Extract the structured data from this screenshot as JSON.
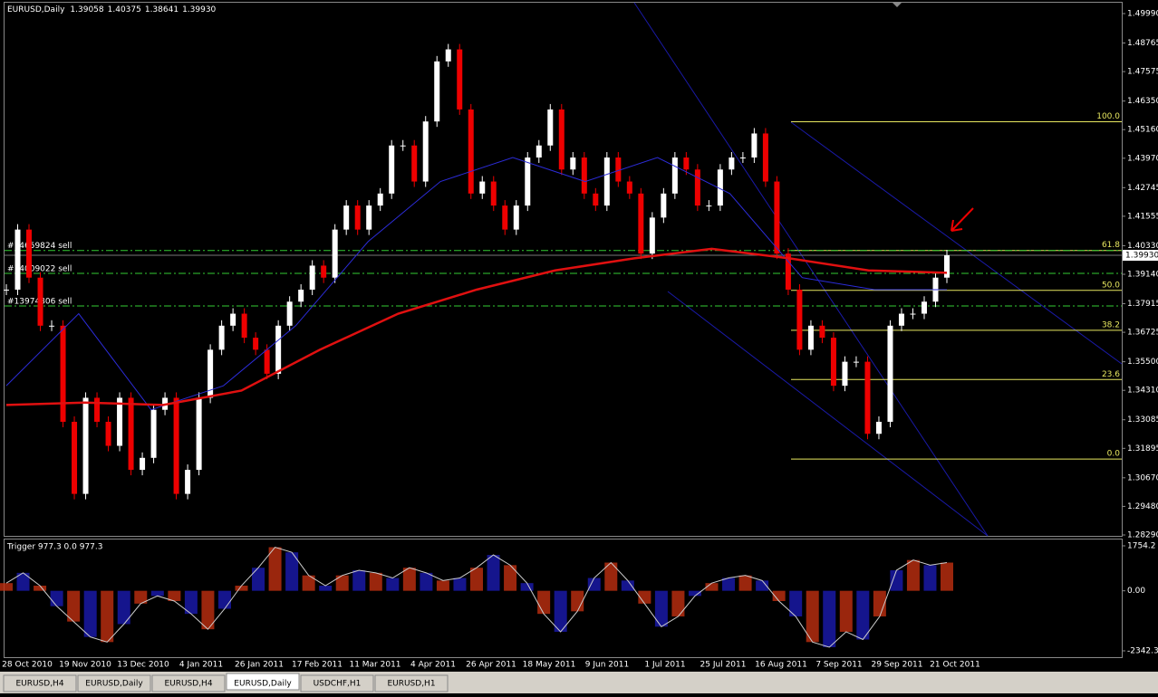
{
  "window": {
    "symbol": "EURUSD,Daily",
    "ohlc": [
      "1.39058",
      "1.40375",
      "1.38641",
      "1.39930"
    ],
    "price_axis": {
      "ylim": [
        1.2829,
        1.4999
      ],
      "yticks": [
        {
          "value": 1.4999,
          "label": "1.49990"
        },
        1.48765,
        1.47575,
        {
          "value": 1.4635,
          "label": "1.46350"
        },
        {
          "value": 1.4516,
          "label": "1.45160"
        },
        {
          "value": 1.4397,
          "label": "1.43970"
        },
        1.42745,
        1.41555,
        {
          "value": 1.4033,
          "label": "1.40330"
        },
        {
          "value": 1.3914,
          "label": "1.39140"
        },
        1.37915,
        1.36725,
        {
          "value": 1.355,
          "label": "1.35500"
        },
        {
          "value": 1.3431,
          "label": "1.34310"
        },
        1.33085,
        1.31895,
        {
          "value": 1.3067,
          "label": "1.30670"
        },
        {
          "value": 1.2948,
          "label": "1.29480"
        },
        {
          "value": 1.2829,
          "label": "1.28290"
        }
      ],
      "current": {
        "value": 1.3993,
        "label": "1.39930"
      }
    },
    "dates": [
      "28 Oct 2010",
      "19 Nov 2010",
      "13 Dec 2010",
      "4 Jan 2011",
      "26 Jan 2011",
      "17 Feb 2011",
      "11 Mar 2011",
      "4 Apr 2011",
      "26 Apr 2011",
      "18 May 2011",
      "9 Jun 2011",
      "1 Jul 2011",
      "25 Jul 2011",
      "16 Aug 2011",
      "7 Sep 2011",
      "29 Sep 2011",
      "21 Oct 2011"
    ],
    "closes": [
      1.385,
      1.41,
      1.39,
      1.37,
      1.37,
      1.33,
      1.3,
      1.34,
      1.33,
      1.32,
      1.34,
      1.31,
      1.315,
      1.335,
      1.34,
      1.3,
      1.31,
      1.34,
      1.36,
      1.37,
      1.375,
      1.365,
      1.36,
      1.35,
      1.37,
      1.38,
      1.385,
      1.395,
      1.39,
      1.41,
      1.42,
      1.41,
      1.42,
      1.425,
      1.445,
      1.445,
      1.43,
      1.455,
      1.48,
      1.485,
      1.46,
      1.425,
      1.43,
      1.42,
      1.41,
      1.42,
      1.44,
      1.445,
      1.46,
      1.435,
      1.44,
      1.425,
      1.42,
      1.44,
      1.43,
      1.425,
      1.4,
      1.415,
      1.425,
      1.44,
      1.435,
      1.42,
      1.42,
      1.435,
      1.44,
      1.44,
      1.45,
      1.43,
      1.4,
      1.385,
      1.36,
      1.37,
      1.365,
      1.345,
      1.355,
      1.355,
      1.325,
      1.33,
      1.37,
      1.375,
      1.375,
      1.38,
      1.39,
      1.3993
    ],
    "ma_red": [
      1.337,
      1.338,
      1.337,
      1.343,
      1.36,
      1.375,
      1.385,
      1.393,
      1.398,
      1.402,
      1.398,
      1.393,
      1.392
    ],
    "ma_blue": [
      1.345,
      1.375,
      1.335,
      1.345,
      1.37,
      1.405,
      1.43,
      1.44,
      1.43,
      1.44,
      1.425,
      1.39,
      1.385,
      1.385
    ],
    "orders": [
      {
        "label": "#14659824 sell",
        "price": 1.4013
      },
      {
        "label": "#14009022 sell",
        "price": 1.3918
      },
      {
        "label": "#13974806 sell",
        "price": 1.3782
      }
    ],
    "fib": [
      {
        "level": {
          "value": 100,
          "label": "100.0"
        },
        "price": 1.4549
      },
      {
        "level": 61.8,
        "price": 1.4013
      },
      {
        "level": {
          "value": 50,
          "label": "50.0"
        },
        "price": 1.3847
      },
      {
        "level": 38.2,
        "price": 1.3681
      },
      {
        "level": 23.6,
        "price": 1.3476
      },
      {
        "level": {
          "value": 0,
          "label": "0.0"
        },
        "price": 1.3145
      }
    ],
    "indicator": {
      "title": "Trigger 977.3 0.0 977.3",
      "ylim": [
        -2342.3,
        1754.2
      ],
      "yticks": [
        1754.2,
        {
          "value": 0,
          "label": "0.00"
        },
        -2342.3
      ],
      "values": [
        300,
        700,
        200,
        -600,
        -1200,
        -1800,
        -2000,
        -1300,
        -500,
        -200,
        -400,
        -900,
        -1500,
        -700,
        200,
        900,
        1700,
        1500,
        600,
        200,
        600,
        800,
        700,
        500,
        900,
        700,
        400,
        500,
        900,
        1400,
        1000,
        300,
        -900,
        -1600,
        -800,
        500,
        1100,
        400,
        -500,
        -1400,
        -1000,
        -200,
        300,
        500,
        600,
        400,
        -400,
        -1000,
        -2000,
        -2200,
        -1600,
        -1900,
        -1000,
        800,
        1200,
        1000,
        1100
      ]
    },
    "tabs": [
      "EURUSD,H4",
      "EURUSD,Daily",
      "EURUSD,H4",
      "EURUSD,Daily",
      "USDCHF,H1",
      "EURUSD,H1"
    ],
    "active_tab": 3
  }
}
